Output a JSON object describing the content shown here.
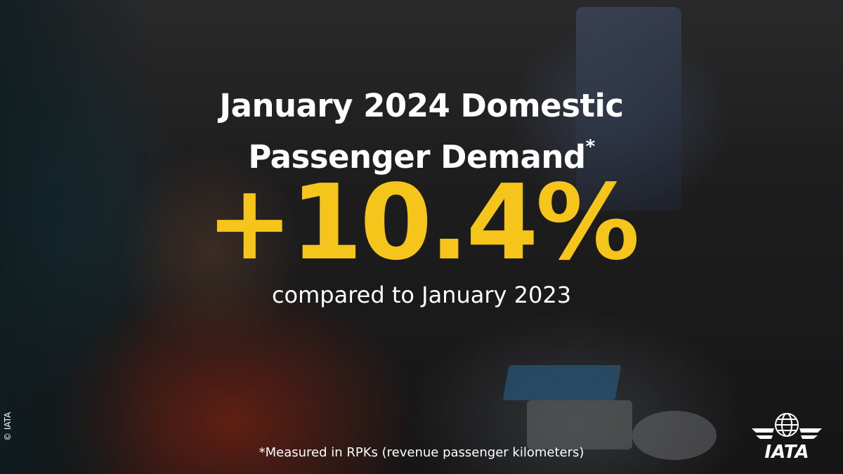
{
  "title_lines": [
    "January 2024 Domestic",
    "Passenger Demand"
  ],
  "title_marker": "*",
  "headline": "+10.4%",
  "subtitle": "compared to January 2023",
  "footnote": "*Measured in RPKs (revenue passenger kilometers)",
  "copyright": "© IATA",
  "logo": "IATA"
}
